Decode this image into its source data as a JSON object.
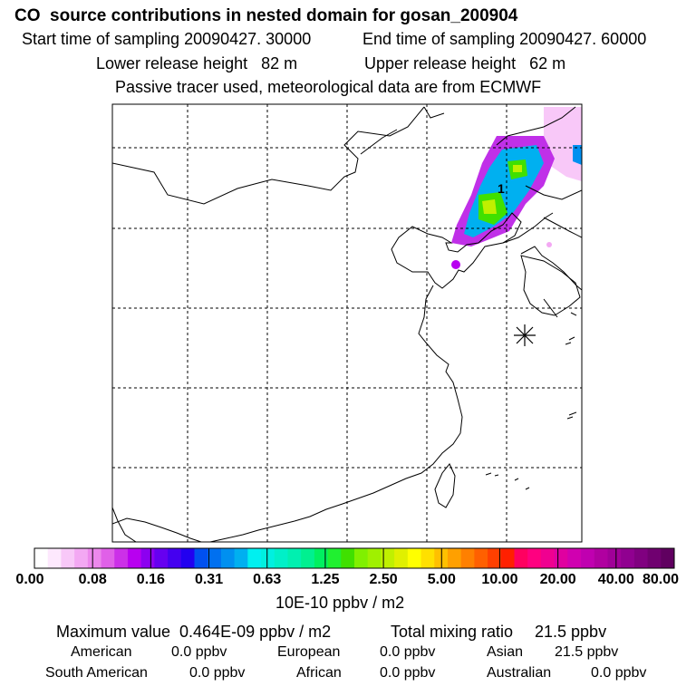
{
  "header": {
    "title": "CO  source contributions in nested domain for gosan_200904",
    "start_label": "Start time of sampling 20090427. 30000",
    "end_label": "End time of sampling 20090427. 60000",
    "lower_label": "Lower release height   82 m",
    "upper_label": "Upper release height   62 m",
    "note": "Passive tracer used, meteorological data are from ECMWF"
  },
  "chart_data": {
    "type": "heatmap",
    "title": "CO  source contributions in nested domain for gosan_200904",
    "units": "10E-10 ppbv / m2",
    "grid": true,
    "marker_label": "1",
    "color_scale": {
      "boundaries": [
        "0.00",
        "0.08",
        "0.16",
        "0.31",
        "0.63",
        "1.25",
        "2.50",
        "5.00",
        "10.00",
        "20.00",
        "40.00",
        "80.00"
      ],
      "colors": [
        "#ffffff",
        "#fde8fd",
        "#f8c8f8",
        "#f3a8f3",
        "#ec88ec",
        "#e060e8",
        "#cc30e8",
        "#b800f0",
        "#8c00f0",
        "#6600f0",
        "#4400f0",
        "#2200f0",
        "#0050f0",
        "#0070f0",
        "#0090f0",
        "#00b0f0",
        "#00f0f0",
        "#00f0e0",
        "#00f0c8",
        "#00f0b0",
        "#00f090",
        "#00f060",
        "#20f030",
        "#40e000",
        "#80f000",
        "#a0f000",
        "#c0f000",
        "#e0f000",
        "#ffff00",
        "#ffe000",
        "#ffc000",
        "#ffa000",
        "#ff8000",
        "#ff6000",
        "#ff4000",
        "#ff2000",
        "#ff0060",
        "#ff0080",
        "#f00090",
        "#e000a0",
        "#d000b0",
        "#c000b0",
        "#b000a0",
        "#a00098",
        "#900090",
        "#800080",
        "#700070",
        "#600060"
      ]
    }
  },
  "stats": {
    "max_label": "Maximum value  0.464E-09 ppbv / m2",
    "total_label": "Total mixing ratio",
    "total_value": "21.5 ppbv"
  },
  "regions": [
    {
      "name": "American",
      "value": "0.0 ppbv"
    },
    {
      "name": "European",
      "value": "0.0 ppbv"
    },
    {
      "name": "Asian",
      "value": "21.5 ppbv"
    },
    {
      "name": "South American",
      "value": "0.0 ppbv"
    },
    {
      "name": "African",
      "value": "0.0 ppbv"
    },
    {
      "name": "Australian",
      "value": "0.0 ppbv"
    }
  ]
}
